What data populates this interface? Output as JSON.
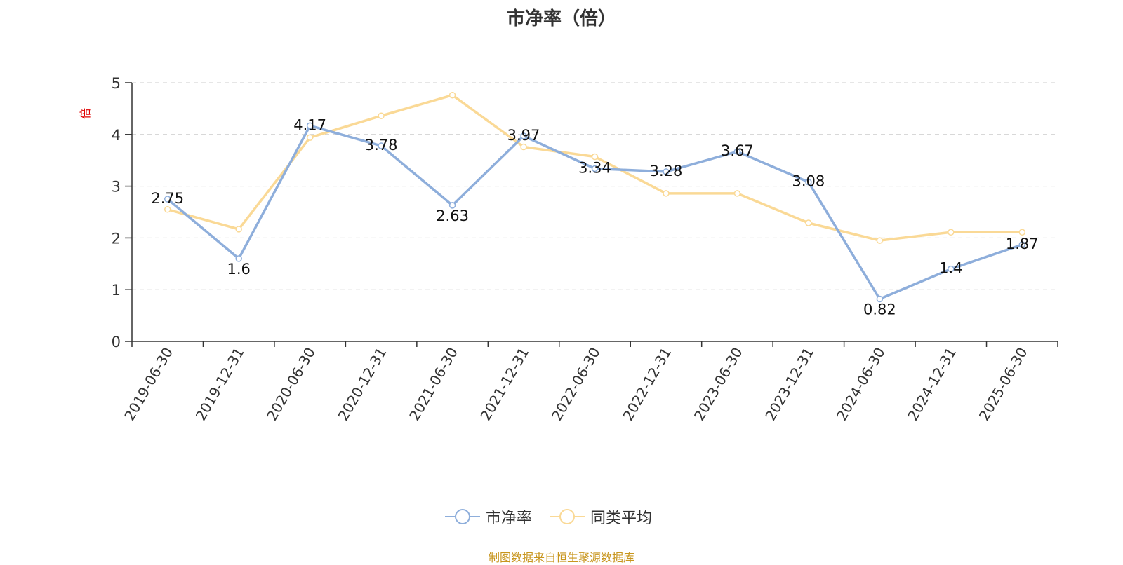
{
  "title": "市净率（倍）",
  "source_note": "制图数据来自恒生聚源数据库",
  "chart_data": {
    "type": "line",
    "title": "市净率（倍）",
    "ylabel": "倍",
    "ylim": [
      0,
      5
    ],
    "yticks": [
      0,
      1,
      2,
      3,
      4,
      5
    ],
    "grid": true,
    "legend_position": "bottom-center",
    "categories": [
      "2019-06-30",
      "2019-12-31",
      "2020-06-30",
      "2020-12-31",
      "2021-06-30",
      "2021-12-31",
      "2022-06-30",
      "2022-12-31",
      "2023-06-30",
      "2023-12-31",
      "2024-06-30",
      "2024-12-31",
      "2025-06-30"
    ],
    "series": [
      {
        "name": "市净率",
        "color": "#8eaedb",
        "values": [
          2.75,
          1.6,
          4.17,
          3.78,
          2.63,
          3.97,
          3.34,
          3.28,
          3.67,
          3.08,
          0.82,
          1.4,
          1.87
        ],
        "labels": [
          "2.75",
          "1.6",
          "4.17",
          "3.78",
          "2.63",
          "3.97",
          "3.34",
          "3.28",
          "3.67",
          "3.08",
          "0.82",
          "1.4",
          "1.87"
        ]
      },
      {
        "name": "同类平均",
        "color": "#fad996",
        "values": [
          2.55,
          2.17,
          3.94,
          4.36,
          4.76,
          3.76,
          3.57,
          2.86,
          2.86,
          2.29,
          1.95,
          2.11,
          2.11
        ]
      }
    ]
  }
}
